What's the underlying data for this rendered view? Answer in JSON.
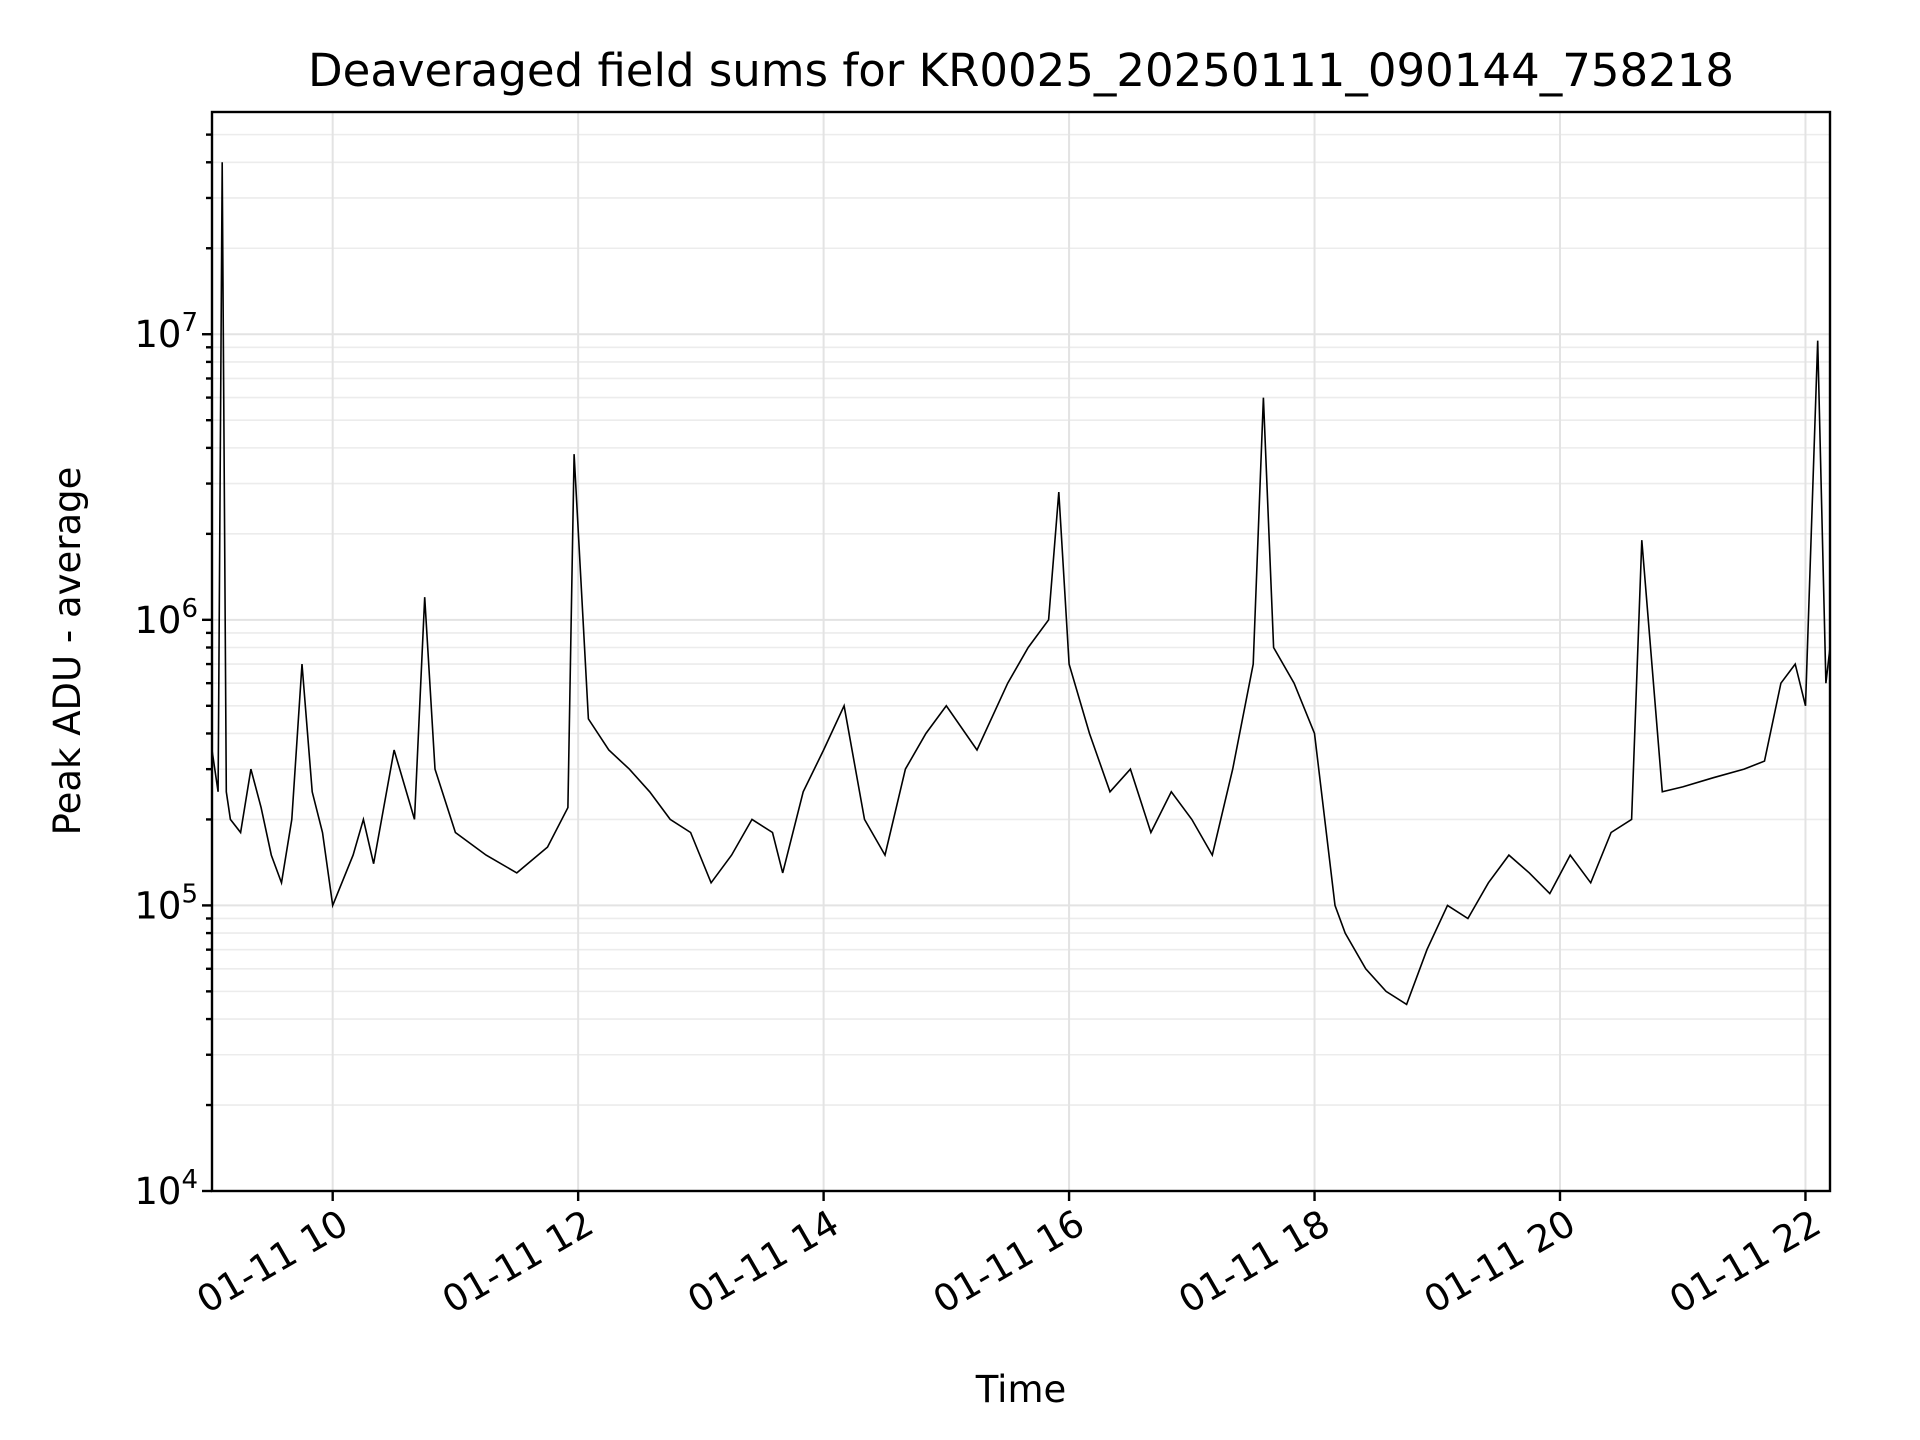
{
  "chart_data": {
    "type": "line",
    "title": "Deaveraged field sums for KR0025_20250111_090144_758218",
    "xlabel": "Time",
    "ylabel": "Peak ADU - average",
    "yscale": "log",
    "ylim": [
      10000,
      60000000
    ],
    "xlim": [
      "2025-01-11 09:01",
      "2025-01-11 22:12"
    ],
    "x_ticks": [
      {
        "label": "01-11 10",
        "value": "2025-01-11 10:00"
      },
      {
        "label": "01-11 12",
        "value": "2025-01-11 12:00"
      },
      {
        "label": "01-11 14",
        "value": "2025-01-11 14:00"
      },
      {
        "label": "01-11 16",
        "value": "2025-01-11 16:00"
      },
      {
        "label": "01-11 18",
        "value": "2025-01-11 18:00"
      },
      {
        "label": "01-11 20",
        "value": "2025-01-11 20:00"
      },
      {
        "label": "01-11 22",
        "value": "2025-01-11 22:00"
      }
    ],
    "y_ticks": [
      {
        "base": "10",
        "exp": "4",
        "value": 10000
      },
      {
        "base": "10",
        "exp": "5",
        "value": 100000
      },
      {
        "base": "10",
        "exp": "6",
        "value": 1000000
      },
      {
        "base": "10",
        "exp": "7",
        "value": 10000000
      }
    ],
    "grid": true,
    "line_color": "#000000",
    "series": [
      {
        "x": [
          "2025-01-11 09:01",
          "2025-01-11 09:04",
          "2025-01-11 09:06",
          "2025-01-11 09:08",
          "2025-01-11 09:10",
          "2025-01-11 09:15",
          "2025-01-11 09:20",
          "2025-01-11 09:25",
          "2025-01-11 09:30",
          "2025-01-11 09:35",
          "2025-01-11 09:40",
          "2025-01-11 09:45",
          "2025-01-11 09:50",
          "2025-01-11 09:55",
          "2025-01-11 10:00",
          "2025-01-11 10:10",
          "2025-01-11 10:15",
          "2025-01-11 10:20",
          "2025-01-11 10:30",
          "2025-01-11 10:40",
          "2025-01-11 10:45",
          "2025-01-11 10:50",
          "2025-01-11 11:00",
          "2025-01-11 11:15",
          "2025-01-11 11:30",
          "2025-01-11 11:45",
          "2025-01-11 11:55",
          "2025-01-11 11:58",
          "2025-01-11 12:05",
          "2025-01-11 12:15",
          "2025-01-11 12:25",
          "2025-01-11 12:35",
          "2025-01-11 12:45",
          "2025-01-11 12:55",
          "2025-01-11 13:05",
          "2025-01-11 13:15",
          "2025-01-11 13:25",
          "2025-01-11 13:35",
          "2025-01-11 13:40",
          "2025-01-11 13:50",
          "2025-01-11 14:00",
          "2025-01-11 14:10",
          "2025-01-11 14:20",
          "2025-01-11 14:30",
          "2025-01-11 14:40",
          "2025-01-11 14:50",
          "2025-01-11 15:00",
          "2025-01-11 15:15",
          "2025-01-11 15:30",
          "2025-01-11 15:40",
          "2025-01-11 15:50",
          "2025-01-11 15:55",
          "2025-01-11 16:00",
          "2025-01-11 16:10",
          "2025-01-11 16:20",
          "2025-01-11 16:30",
          "2025-01-11 16:40",
          "2025-01-11 16:50",
          "2025-01-11 17:00",
          "2025-01-11 17:10",
          "2025-01-11 17:20",
          "2025-01-11 17:30",
          "2025-01-11 17:35",
          "2025-01-11 17:40",
          "2025-01-11 17:50",
          "2025-01-11 18:00",
          "2025-01-11 18:10",
          "2025-01-11 18:15",
          "2025-01-11 18:25",
          "2025-01-11 18:35",
          "2025-01-11 18:45",
          "2025-01-11 18:55",
          "2025-01-11 19:05",
          "2025-01-11 19:15",
          "2025-01-11 19:25",
          "2025-01-11 19:35",
          "2025-01-11 19:45",
          "2025-01-11 19:55",
          "2025-01-11 20:05",
          "2025-01-11 20:15",
          "2025-01-11 20:25",
          "2025-01-11 20:35",
          "2025-01-11 20:40",
          "2025-01-11 20:50",
          "2025-01-11 21:00",
          "2025-01-11 21:15",
          "2025-01-11 21:30",
          "2025-01-11 21:40",
          "2025-01-11 21:48",
          "2025-01-11 21:55",
          "2025-01-11 22:00",
          "2025-01-11 22:06",
          "2025-01-11 22:10",
          "2025-01-11 22:12"
        ],
        "values": [
          350000,
          250000,
          40000000,
          250000,
          200000,
          180000,
          300000,
          220000,
          150000,
          120000,
          200000,
          700000,
          250000,
          180000,
          100000,
          150000,
          200000,
          140000,
          350000,
          200000,
          1200000,
          300000,
          180000,
          150000,
          130000,
          160000,
          220000,
          3800000,
          450000,
          350000,
          300000,
          250000,
          200000,
          180000,
          120000,
          150000,
          200000,
          180000,
          130000,
          250000,
          350000,
          500000,
          200000,
          150000,
          300000,
          400000,
          500000,
          350000,
          600000,
          800000,
          1000000,
          2800000,
          700000,
          400000,
          250000,
          300000,
          180000,
          250000,
          200000,
          150000,
          300000,
          700000,
          6000000,
          800000,
          600000,
          400000,
          100000,
          80000,
          60000,
          50000,
          45000,
          70000,
          100000,
          90000,
          120000,
          150000,
          130000,
          110000,
          150000,
          120000,
          180000,
          200000,
          1900000,
          250000,
          260000,
          280000,
          300000,
          320000,
          600000,
          700000,
          500000,
          9500000,
          600000,
          800000
        ]
      }
    ]
  }
}
